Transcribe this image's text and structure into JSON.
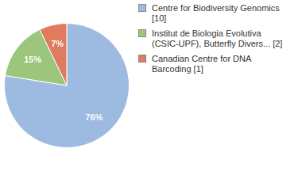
{
  "chart_data": {
    "type": "pie",
    "categories": [
      "Centre for Biodiversity Genomics [10]",
      "Institut de Biologia Evolutiva (CSIC-UPF), Butterfly Divers... [2]",
      "Canadian Centre for DNA Barcoding [1]"
    ],
    "values": [
      76,
      15,
      7
    ],
    "value_labels": [
      "76%",
      "15%",
      "7%"
    ],
    "colors": [
      "#9dbbe1",
      "#9cc67c",
      "#df7b5e"
    ],
    "data_labels": true,
    "legend": "right"
  }
}
